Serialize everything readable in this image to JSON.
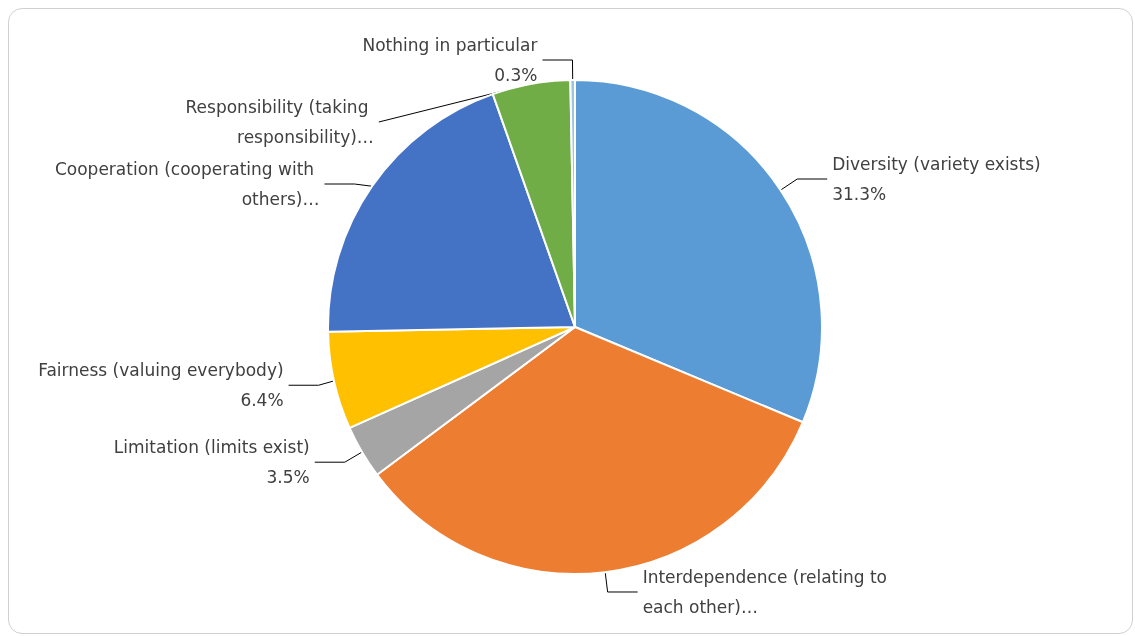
{
  "chart_data": {
    "type": "pie",
    "categories": [
      "Diversity (variety exists)",
      "Interdependence (relating to each other)…",
      "Limitation (limits exist)",
      "Fairness (valuing everybody)",
      "Cooperation (cooperating with others)…",
      "Responsibility (taking responsibility)…",
      "Nothing in particular"
    ],
    "values": [
      31.3,
      33.5,
      3.5,
      6.4,
      19.9,
      5.1,
      0.3
    ],
    "value_labels": [
      "31.3%",
      null,
      "3.5%",
      "6.4%",
      null,
      null,
      "0.3%"
    ],
    "colors": [
      "#5b9bd5",
      "#ed7d31",
      "#a5a5a5",
      "#ffc000",
      "#4472c4",
      "#70ad47",
      "#9dc3e6"
    ],
    "legend": false
  }
}
